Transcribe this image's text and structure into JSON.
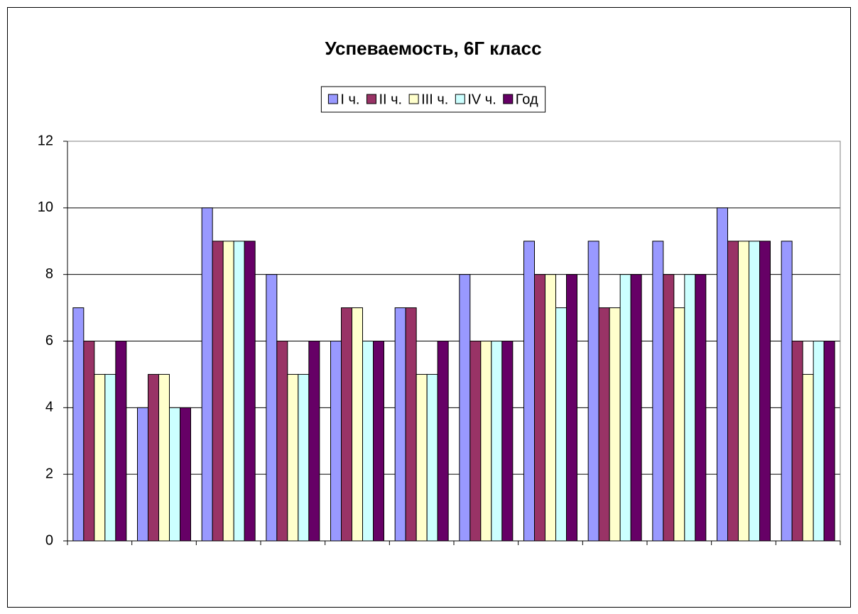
{
  "chart_data": {
    "type": "bar",
    "title": "Успеваемость, 6Г класс",
    "categories": [
      null,
      null,
      null,
      null,
      null,
      null,
      null,
      null,
      null,
      null,
      null,
      null
    ],
    "series": [
      {
        "name": "I ч.",
        "color": "#9999ff",
        "values": [
          7,
          4,
          10,
          8,
          6,
          7,
          8,
          9,
          9,
          9,
          10,
          9
        ]
      },
      {
        "name": "II ч.",
        "color": "#993366",
        "values": [
          6,
          5,
          9,
          6,
          7,
          7,
          6,
          8,
          7,
          8,
          9,
          6
        ]
      },
      {
        "name": "III ч.",
        "color": "#ffffcc",
        "values": [
          5,
          5,
          9,
          5,
          7,
          5,
          6,
          8,
          7,
          7,
          9,
          5
        ]
      },
      {
        "name": "IV ч.",
        "color": "#ccffff",
        "values": [
          5,
          4,
          9,
          5,
          6,
          5,
          6,
          7,
          8,
          8,
          9,
          6
        ]
      },
      {
        "name": "Год",
        "color": "#660066",
        "values": [
          6,
          4,
          9,
          6,
          6,
          6,
          6,
          8,
          8,
          8,
          9,
          6
        ]
      }
    ],
    "ylim": [
      0,
      12
    ],
    "yticks": [
      0,
      2,
      4,
      6,
      8,
      10,
      12
    ],
    "grid": true,
    "legend": "top"
  }
}
